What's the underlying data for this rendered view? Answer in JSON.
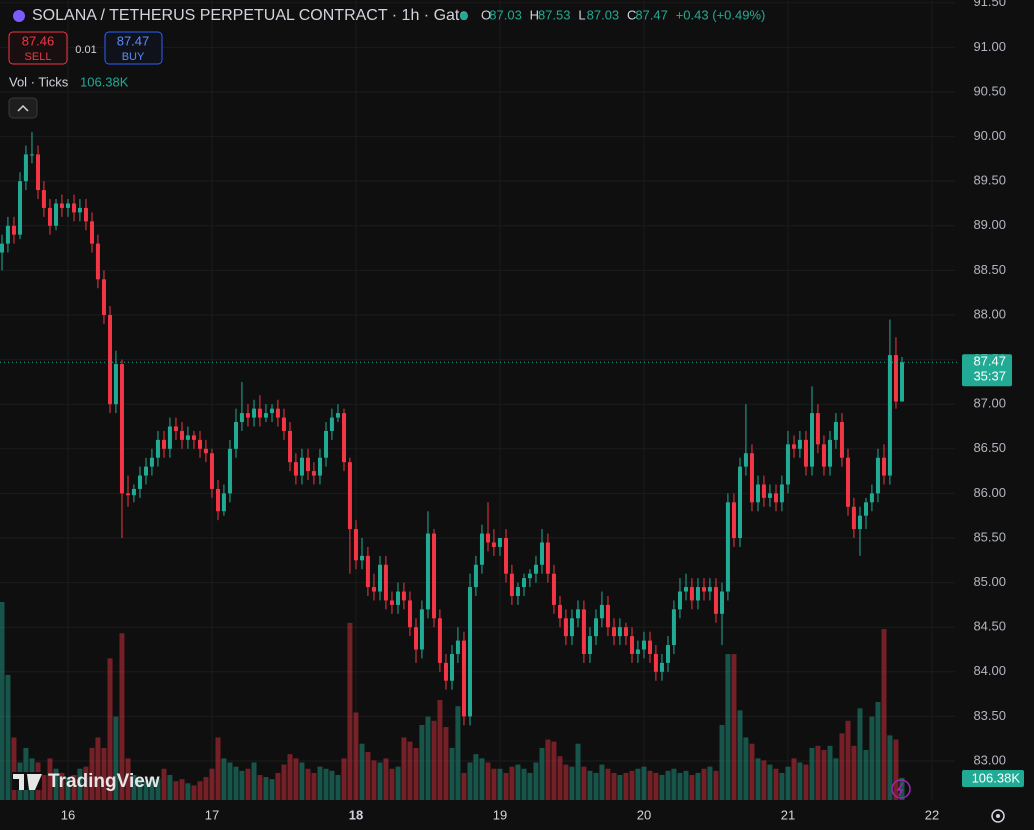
{
  "chart_data": {
    "type": "candlestick",
    "title": "SOLANA / TETHERUS PERPETUAL CONTRACT · 1h · Gate",
    "legend_keys": [
      "O",
      "H",
      "L",
      "C"
    ],
    "change": "+0.43 (+0.49%)",
    "countdown": "35:37",
    "brand": "TradingView",
    "order_panel": {
      "sell_price": 87.46,
      "sell_label": "SELL",
      "spread": 0.01,
      "buy_price": 87.47,
      "buy_label": "BUY"
    },
    "up_color": "#22ab94",
    "down_color": "#f23645",
    "grid": true,
    "xlim": [
      15.528,
      22.16
    ],
    "xticks": [
      16,
      17,
      18,
      19,
      20,
      21,
      22
    ],
    "ylim": [
      82.563,
      91.531
    ],
    "yticks": [
      {
        "value": 83,
        "label": "83.00"
      },
      {
        "value": 83.5,
        "label": "83.50"
      },
      {
        "value": 84,
        "label": "84.00"
      },
      {
        "value": 84.5,
        "label": "84.50"
      },
      {
        "value": 85,
        "label": "85.00"
      },
      {
        "value": 85.5,
        "label": "85.50"
      },
      {
        "value": 86,
        "label": "86.00"
      },
      {
        "value": 86.5,
        "label": "86.50"
      },
      {
        "value": 87,
        "label": "87.00"
      },
      {
        "value": 87.5,
        "label": "87.50"
      },
      {
        "value": 88,
        "label": "88.00"
      },
      {
        "value": 88.5,
        "label": "88.50"
      },
      {
        "value": 89,
        "label": "89.00"
      },
      {
        "value": 89.5,
        "label": "89.50"
      },
      {
        "value": 90,
        "label": "90.00"
      },
      {
        "value": 90.5,
        "label": "90.50"
      },
      {
        "value": 91,
        "label": "91.00"
      },
      {
        "value": 91.5,
        "label": "91.50"
      }
    ],
    "x": [
      15.542,
      15.583,
      15.625,
      15.667,
      15.708,
      15.75,
      15.792,
      15.833,
      15.875,
      15.917,
      15.958,
      16,
      16.042,
      16.083,
      16.125,
      16.167,
      16.208,
      16.25,
      16.292,
      16.333,
      16.375,
      16.417,
      16.458,
      16.5,
      16.542,
      16.583,
      16.625,
      16.667,
      16.708,
      16.75,
      16.792,
      16.833,
      16.875,
      16.917,
      16.958,
      17,
      17.042,
      17.083,
      17.125,
      17.167,
      17.208,
      17.25,
      17.292,
      17.333,
      17.375,
      17.417,
      17.458,
      17.5,
      17.542,
      17.583,
      17.625,
      17.667,
      17.708,
      17.75,
      17.792,
      17.833,
      17.875,
      17.917,
      17.958,
      18,
      18.042,
      18.083,
      18.125,
      18.167,
      18.208,
      18.25,
      18.292,
      18.333,
      18.375,
      18.417,
      18.458,
      18.5,
      18.542,
      18.583,
      18.625,
      18.667,
      18.708,
      18.75,
      18.792,
      18.833,
      18.875,
      18.917,
      18.958,
      19,
      19.042,
      19.083,
      19.125,
      19.167,
      19.208,
      19.25,
      19.292,
      19.333,
      19.375,
      19.417,
      19.458,
      19.5,
      19.542,
      19.583,
      19.625,
      19.667,
      19.708,
      19.75,
      19.792,
      19.833,
      19.875,
      19.917,
      19.958,
      20,
      20.042,
      20.083,
      20.125,
      20.167,
      20.208,
      20.25,
      20.292,
      20.333,
      20.375,
      20.417,
      20.458,
      20.5,
      20.542,
      20.583,
      20.625,
      20.667,
      20.708,
      20.75,
      20.792,
      20.833,
      20.875,
      20.917,
      20.958,
      21,
      21.042,
      21.083,
      21.125,
      21.167,
      21.208,
      21.25,
      21.292,
      21.333,
      21.375,
      21.417,
      21.458,
      21.5,
      21.542,
      21.583,
      21.625,
      21.667,
      21.708,
      21.75,
      21.792
    ],
    "open": [
      88.7,
      88.8,
      89.0,
      88.9,
      89.5,
      89.8,
      89.8,
      89.4,
      89.2,
      89.0,
      89.25,
      89.2,
      89.25,
      89.15,
      89.2,
      89.05,
      88.8,
      88.4,
      88.0,
      87.0,
      87.45,
      86.0,
      85.98,
      86.05,
      86.2,
      86.3,
      86.4,
      86.6,
      86.5,
      86.75,
      86.7,
      86.6,
      86.65,
      86.6,
      86.5,
      86.45,
      86.05,
      85.8,
      86.0,
      86.5,
      86.8,
      86.9,
      86.85,
      86.95,
      86.85,
      86.9,
      86.95,
      86.85,
      86.7,
      86.35,
      86.2,
      86.4,
      86.25,
      86.2,
      86.4,
      86.7,
      86.85,
      86.9,
      86.35,
      85.6,
      85.25,
      85.3,
      84.95,
      84.9,
      85.2,
      84.8,
      84.75,
      84.9,
      84.8,
      84.5,
      84.25,
      84.7,
      85.55,
      84.6,
      84.1,
      83.9,
      84.2,
      84.35,
      83.5,
      84.95,
      85.2,
      85.55,
      85.45,
      85.4,
      85.5,
      85.1,
      84.85,
      84.95,
      85.05,
      85.1,
      85.2,
      85.45,
      85.1,
      84.75,
      84.6,
      84.4,
      84.6,
      84.7,
      84.2,
      84.4,
      84.6,
      84.75,
      84.5,
      84.4,
      84.5,
      84.4,
      84.2,
      84.25,
      84.35,
      84.2,
      84.0,
      84.1,
      84.3,
      84.7,
      84.9,
      84.95,
      84.8,
      84.95,
      84.9,
      84.95,
      84.65,
      84.9,
      85.9,
      85.5,
      86.3,
      86.45,
      85.9,
      86.1,
      85.95,
      86.0,
      85.9,
      86.1,
      86.55,
      86.5,
      86.6,
      86.3,
      86.9,
      86.55,
      86.3,
      86.6,
      86.8,
      86.4,
      85.85,
      85.6,
      85.75,
      85.9,
      86.0,
      86.4,
      86.2,
      87.55,
      87.03
    ],
    "high": [
      88.9,
      89.1,
      89.1,
      89.6,
      89.9,
      90.05,
      89.9,
      89.5,
      89.3,
      89.3,
      89.35,
      89.3,
      89.35,
      89.3,
      89.3,
      89.15,
      88.9,
      88.5,
      88.1,
      87.6,
      87.5,
      86.2,
      86.1,
      86.3,
      86.4,
      86.5,
      86.7,
      86.7,
      86.85,
      86.85,
      86.8,
      86.75,
      86.7,
      86.7,
      86.6,
      86.5,
      86.15,
      86.1,
      86.6,
      86.95,
      87.25,
      87.0,
      87.05,
      87.1,
      87.0,
      87.0,
      87.05,
      86.95,
      86.8,
      86.45,
      86.5,
      86.5,
      86.35,
      86.5,
      86.8,
      86.95,
      87.0,
      86.95,
      86.4,
      85.7,
      85.5,
      85.4,
      85.1,
      85.3,
      85.3,
      84.9,
      85.0,
      85.0,
      84.9,
      84.6,
      84.8,
      85.8,
      85.6,
      84.7,
      84.2,
      84.3,
      84.5,
      84.45,
      85.1,
      85.3,
      85.65,
      85.9,
      85.6,
      85.5,
      85.6,
      85.2,
      85.0,
      85.1,
      85.15,
      85.3,
      85.6,
      85.55,
      85.2,
      84.85,
      84.7,
      84.7,
      84.8,
      84.8,
      84.5,
      84.7,
      84.9,
      84.85,
      84.6,
      84.6,
      84.55,
      84.5,
      84.35,
      84.45,
      84.45,
      84.3,
      84.2,
      84.4,
      84.8,
      85.05,
      85.1,
      85.05,
      85.05,
      85.05,
      85.05,
      85.05,
      85.0,
      86.0,
      86.0,
      86.4,
      87.0,
      86.55,
      86.2,
      86.2,
      86.1,
      86.1,
      86.2,
      86.7,
      86.65,
      86.7,
      86.7,
      87.2,
      87.0,
      86.65,
      86.7,
      86.9,
      86.9,
      86.5,
      85.95,
      85.85,
      85.95,
      86.1,
      86.5,
      86.55,
      87.95,
      87.75,
      87.53
    ],
    "low": [
      88.5,
      88.7,
      88.8,
      88.85,
      89.4,
      89.7,
      89.3,
      89.1,
      88.9,
      88.95,
      89.1,
      89.1,
      89.05,
      89.05,
      88.95,
      88.7,
      88.3,
      87.9,
      86.9,
      86.9,
      85.5,
      85.85,
      85.9,
      85.95,
      86.1,
      86.2,
      86.3,
      86.4,
      86.4,
      86.6,
      86.5,
      86.5,
      86.5,
      86.4,
      86.35,
      85.95,
      85.7,
      85.75,
      85.9,
      86.4,
      86.7,
      86.75,
      86.75,
      86.75,
      86.8,
      86.8,
      86.75,
      86.6,
      86.25,
      86.1,
      86.1,
      86.15,
      86.1,
      86.1,
      86.3,
      86.6,
      86.8,
      86.25,
      85.1,
      85.15,
      85.15,
      84.85,
      84.8,
      84.8,
      84.7,
      84.65,
      84.65,
      84.7,
      84.4,
      84.1,
      84.15,
      84.6,
      84.5,
      84.0,
      83.8,
      83.8,
      84.1,
      83.4,
      83.4,
      84.85,
      85.1,
      85.35,
      85.3,
      85.3,
      85.0,
      84.75,
      84.75,
      84.85,
      84.95,
      85.0,
      85.1,
      85.0,
      84.65,
      84.5,
      84.3,
      84.3,
      84.5,
      84.1,
      84.1,
      84.3,
      84.5,
      84.4,
      84.3,
      84.3,
      84.3,
      84.1,
      84.1,
      84.15,
      84.1,
      83.9,
      83.9,
      84.0,
      84.2,
      84.6,
      84.8,
      84.7,
      84.7,
      84.8,
      84.8,
      84.55,
      84.3,
      84.8,
      85.4,
      85.4,
      86.2,
      85.8,
      85.8,
      85.85,
      85.85,
      85.8,
      85.8,
      86.0,
      86.4,
      86.4,
      86.2,
      86.2,
      86.45,
      86.2,
      86.2,
      86.5,
      86.3,
      85.75,
      85.5,
      85.3,
      85.6,
      85.8,
      85.9,
      86.1,
      86.1,
      86.95,
      87.03
    ],
    "close": [
      88.8,
      89.0,
      88.9,
      89.5,
      89.8,
      89.8,
      89.4,
      89.2,
      89.0,
      89.25,
      89.2,
      89.25,
      89.15,
      89.2,
      89.05,
      88.8,
      88.4,
      88.0,
      87.0,
      87.45,
      86.0,
      85.98,
      86.05,
      86.2,
      86.3,
      86.4,
      86.6,
      86.5,
      86.75,
      86.7,
      86.6,
      86.65,
      86.6,
      86.5,
      86.45,
      86.05,
      85.8,
      86.0,
      86.5,
      86.8,
      86.9,
      86.85,
      86.95,
      86.85,
      86.9,
      86.95,
      86.85,
      86.7,
      86.35,
      86.2,
      86.4,
      86.25,
      86.2,
      86.4,
      86.7,
      86.85,
      86.9,
      86.35,
      85.6,
      85.25,
      85.3,
      84.95,
      84.9,
      85.2,
      84.8,
      84.75,
      84.9,
      84.8,
      84.5,
      84.25,
      84.7,
      85.55,
      84.6,
      84.1,
      83.9,
      84.2,
      84.35,
      83.5,
      84.95,
      85.2,
      85.55,
      85.45,
      85.4,
      85.5,
      85.1,
      84.85,
      84.95,
      85.05,
      85.1,
      85.2,
      85.45,
      85.1,
      84.75,
      84.6,
      84.4,
      84.6,
      84.7,
      84.2,
      84.4,
      84.6,
      84.75,
      84.5,
      84.4,
      84.5,
      84.4,
      84.2,
      84.25,
      84.35,
      84.2,
      84.0,
      84.1,
      84.3,
      84.7,
      84.9,
      84.95,
      84.8,
      84.95,
      84.9,
      84.95,
      84.65,
      84.9,
      85.9,
      85.5,
      86.3,
      86.45,
      85.9,
      86.1,
      85.95,
      86.0,
      85.9,
      86.1,
      86.55,
      86.5,
      86.6,
      86.3,
      86.9,
      86.55,
      86.3,
      86.6,
      86.8,
      86.4,
      85.85,
      85.6,
      85.75,
      85.9,
      86.0,
      86.4,
      86.2,
      87.55,
      87.03,
      87.47
    ],
    "volume": {
      "name": "Vol · Ticks",
      "values": [
        950,
        600,
        300,
        180,
        250,
        200,
        180,
        120,
        200,
        150,
        130,
        110,
        120,
        150,
        160,
        250,
        300,
        250,
        680,
        400,
        800,
        200,
        120,
        100,
        90,
        110,
        100,
        150,
        120,
        90,
        100,
        80,
        70,
        90,
        110,
        150,
        300,
        200,
        180,
        160,
        140,
        150,
        180,
        120,
        110,
        100,
        130,
        170,
        220,
        200,
        180,
        150,
        130,
        160,
        150,
        140,
        120,
        200,
        850,
        420,
        270,
        230,
        190,
        180,
        200,
        150,
        160,
        300,
        280,
        250,
        360,
        400,
        380,
        480,
        350,
        250,
        450,
        130,
        180,
        220,
        200,
        180,
        150,
        150,
        130,
        160,
        170,
        150,
        130,
        180,
        250,
        290,
        280,
        210,
        170,
        160,
        270,
        160,
        140,
        130,
        170,
        150,
        130,
        120,
        130,
        140,
        150,
        160,
        140,
        130,
        120,
        140,
        150,
        130,
        140,
        120,
        130,
        150,
        160,
        140,
        360,
        700,
        700,
        430,
        300,
        270,
        200,
        190,
        170,
        150,
        130,
        160,
        200,
        180,
        170,
        250,
        260,
        240,
        260,
        200,
        320,
        380,
        260,
        440,
        240,
        400,
        470,
        820,
        310,
        290,
        {
          "value": 106.38,
          "label": "106.38K"
        }
      ]
    }
  }
}
